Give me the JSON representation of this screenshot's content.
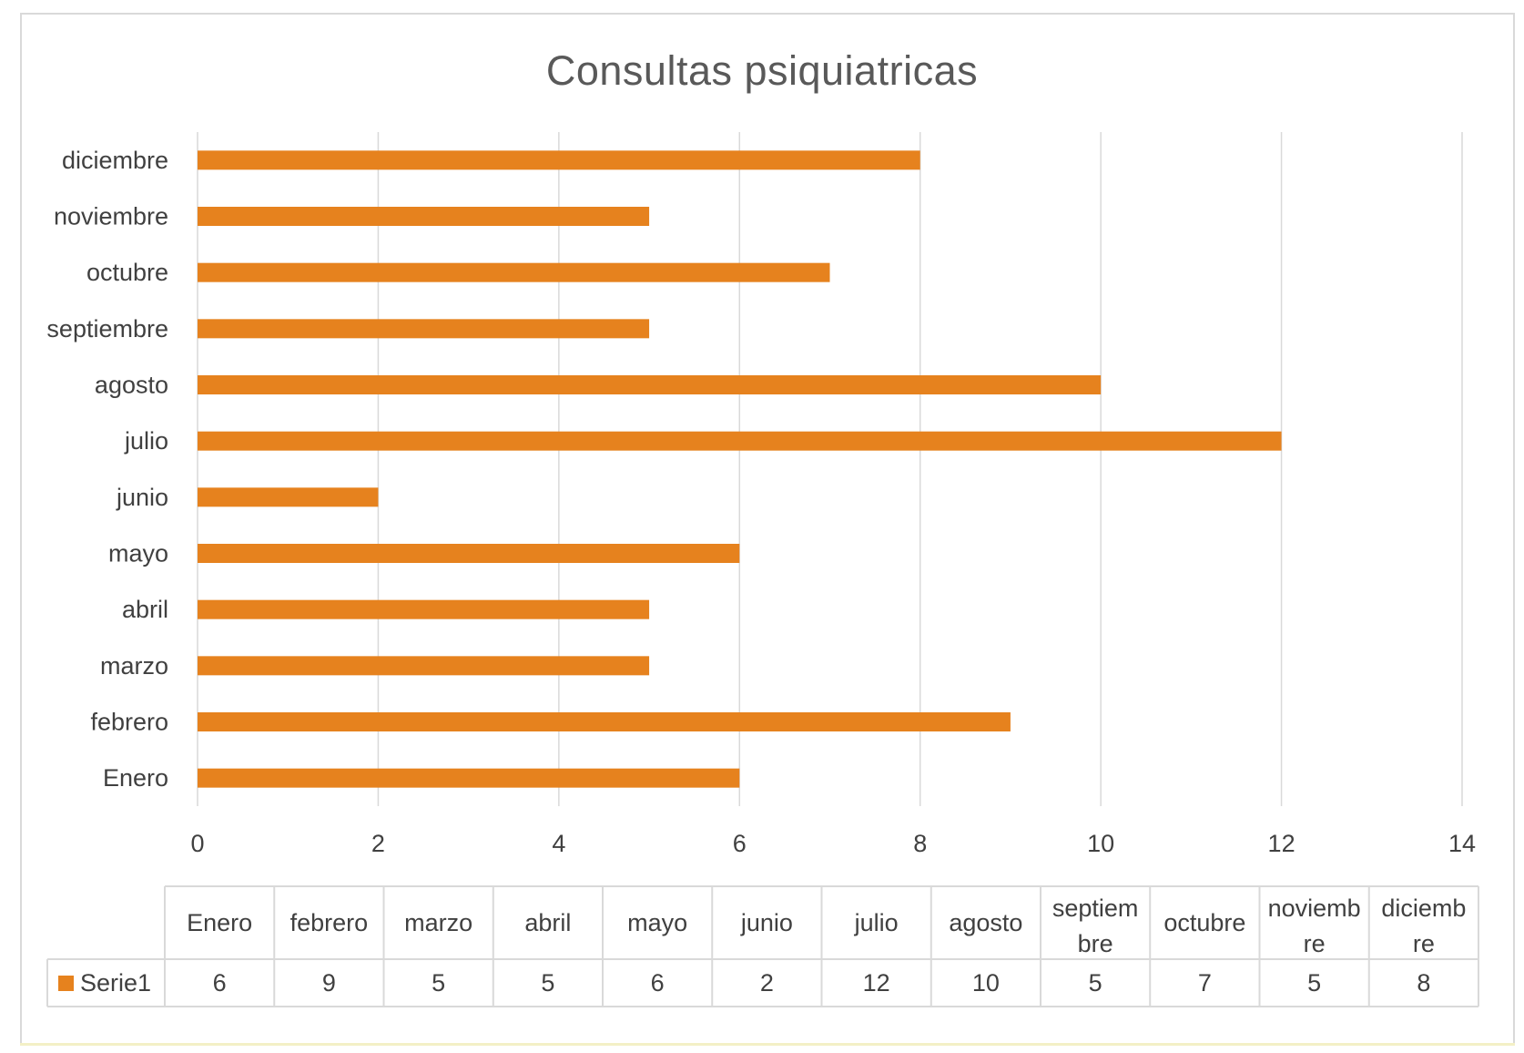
{
  "chart_data": {
    "type": "bar",
    "orientation": "horizontal",
    "title": "Consultas psiquiatricas",
    "xlabel": "",
    "ylabel": "",
    "categories": [
      "Enero",
      "febrero",
      "marzo",
      "abril",
      "mayo",
      "junio",
      "julio",
      "agosto",
      "septiembre",
      "octubre",
      "noviembre",
      "diciembre"
    ],
    "series": [
      {
        "name": "Serie1",
        "values": [
          6,
          9,
          5,
          5,
          6,
          2,
          12,
          10,
          5,
          7,
          5,
          8
        ]
      }
    ],
    "xlim": [
      0,
      14
    ],
    "xticks": [
      "0",
      "2",
      "4",
      "6",
      "8",
      "10",
      "12",
      "14"
    ],
    "grid": "vertical",
    "legend": "data-table-below",
    "data_table": {
      "headers": [
        [
          "Enero"
        ],
        [
          "febrero"
        ],
        [
          "marzo"
        ],
        [
          "abril"
        ],
        [
          "mayo"
        ],
        [
          "junio"
        ],
        [
          "julio"
        ],
        [
          "agosto"
        ],
        [
          "septiem",
          "bre"
        ],
        [
          "octubre"
        ],
        [
          "noviemb",
          "re"
        ],
        [
          "diciemb",
          "re"
        ]
      ],
      "row_label": "Serie1",
      "values": [
        "6",
        "9",
        "5",
        "5",
        "6",
        "2",
        "12",
        "10",
        "5",
        "7",
        "5",
        "8"
      ]
    },
    "colors": {
      "bar": "#e6821e",
      "grid": "#d9d9d9",
      "text": "#404040"
    }
  }
}
